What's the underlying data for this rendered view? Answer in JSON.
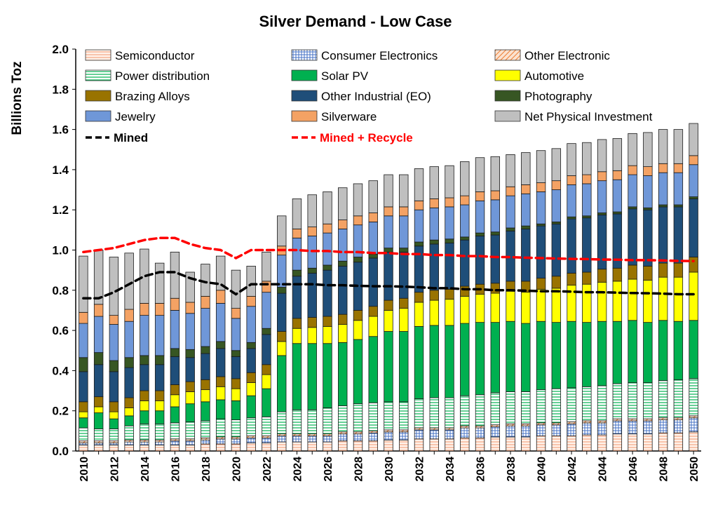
{
  "chart_data": {
    "type": "bar",
    "stacked": true,
    "title": "Silver Demand - Low Case",
    "ylabel": "Billions Toz",
    "xlabel": "",
    "ylim": [
      0,
      2.0
    ],
    "y_ticks": [
      "0.0",
      "0.2",
      "0.4",
      "0.6",
      "0.8",
      "1.0",
      "1.2",
      "1.4",
      "1.6",
      "1.8",
      "2.0"
    ],
    "x_tick_labels": [
      "2010",
      "2012",
      "2014",
      "2016",
      "2018",
      "2020",
      "2022",
      "2024",
      "2026",
      "2028",
      "2030",
      "2032",
      "2034",
      "2036",
      "2038",
      "2040",
      "2042",
      "2044",
      "2046",
      "2048",
      "2050"
    ],
    "categories": [
      2010,
      2011,
      2012,
      2013,
      2014,
      2015,
      2016,
      2017,
      2018,
      2019,
      2020,
      2021,
      2022,
      2023,
      2024,
      2025,
      2026,
      2027,
      2028,
      2029,
      2030,
      2031,
      2032,
      2033,
      2034,
      2035,
      2036,
      2037,
      2038,
      2039,
      2040,
      2041,
      2042,
      2043,
      2044,
      2045,
      2046,
      2047,
      2048,
      2049,
      2050
    ],
    "legend_position": "top",
    "grid": false,
    "series": [
      {
        "name": "Semiconductor",
        "color": "#f8cbad",
        "pattern": "hlines-peach",
        "values": [
          0.03,
          0.03,
          0.03,
          0.03,
          0.03,
          0.03,
          0.03,
          0.03,
          0.035,
          0.035,
          0.035,
          0.04,
          0.04,
          0.045,
          0.045,
          0.045,
          0.045,
          0.05,
          0.05,
          0.05,
          0.055,
          0.055,
          0.06,
          0.06,
          0.06,
          0.065,
          0.065,
          0.07,
          0.07,
          0.07,
          0.075,
          0.075,
          0.075,
          0.08,
          0.08,
          0.085,
          0.085,
          0.085,
          0.09,
          0.09,
          0.095
        ]
      },
      {
        "name": "Consumer Electronics",
        "color": "#4472c4",
        "pattern": "grid-blue",
        "values": [
          0.01,
          0.01,
          0.01,
          0.015,
          0.015,
          0.015,
          0.02,
          0.02,
          0.02,
          0.025,
          0.025,
          0.025,
          0.025,
          0.03,
          0.03,
          0.03,
          0.03,
          0.035,
          0.035,
          0.04,
          0.04,
          0.04,
          0.045,
          0.045,
          0.045,
          0.05,
          0.05,
          0.05,
          0.055,
          0.055,
          0.055,
          0.055,
          0.06,
          0.06,
          0.06,
          0.065,
          0.065,
          0.065,
          0.065,
          0.065,
          0.07
        ]
      },
      {
        "name": "Other Electronic",
        "color": "#ed7d31",
        "pattern": "diag-orange",
        "values": [
          0.01,
          0.01,
          0.01,
          0.01,
          0.01,
          0.01,
          0.01,
          0.01,
          0.01,
          0.01,
          0.01,
          0.01,
          0.01,
          0.01,
          0.01,
          0.01,
          0.01,
          0.01,
          0.01,
          0.01,
          0.01,
          0.01,
          0.01,
          0.01,
          0.01,
          0.01,
          0.01,
          0.01,
          0.01,
          0.01,
          0.01,
          0.01,
          0.01,
          0.01,
          0.01,
          0.01,
          0.01,
          0.01,
          0.01,
          0.01,
          0.01
        ]
      },
      {
        "name": "Power distribution",
        "color": "#00b050",
        "pattern": "hlines-green",
        "values": [
          0.065,
          0.06,
          0.06,
          0.07,
          0.08,
          0.08,
          0.08,
          0.085,
          0.085,
          0.09,
          0.085,
          0.09,
          0.095,
          0.11,
          0.12,
          0.12,
          0.13,
          0.13,
          0.14,
          0.14,
          0.14,
          0.14,
          0.145,
          0.15,
          0.15,
          0.15,
          0.155,
          0.16,
          0.16,
          0.16,
          0.165,
          0.17,
          0.17,
          0.17,
          0.175,
          0.175,
          0.18,
          0.18,
          0.185,
          0.19,
          0.185
        ]
      },
      {
        "name": "Solar PV",
        "color": "#00b050",
        "pattern": "",
        "values": [
          0.05,
          0.08,
          0.05,
          0.05,
          0.065,
          0.065,
          0.08,
          0.09,
          0.095,
          0.095,
          0.095,
          0.11,
          0.14,
          0.28,
          0.33,
          0.33,
          0.32,
          0.315,
          0.32,
          0.33,
          0.35,
          0.35,
          0.36,
          0.36,
          0.36,
          0.36,
          0.36,
          0.35,
          0.35,
          0.34,
          0.34,
          0.33,
          0.33,
          0.32,
          0.32,
          0.31,
          0.31,
          0.3,
          0.3,
          0.29,
          0.29
        ]
      },
      {
        "name": "Automotive",
        "color": "#ffff00",
        "pattern": "",
        "values": [
          0.03,
          0.03,
          0.035,
          0.04,
          0.05,
          0.05,
          0.06,
          0.06,
          0.06,
          0.065,
          0.06,
          0.065,
          0.07,
          0.07,
          0.075,
          0.08,
          0.085,
          0.09,
          0.095,
          0.1,
          0.105,
          0.115,
          0.12,
          0.125,
          0.13,
          0.135,
          0.14,
          0.145,
          0.15,
          0.155,
          0.16,
          0.17,
          0.18,
          0.19,
          0.195,
          0.2,
          0.205,
          0.21,
          0.215,
          0.22,
          0.24
        ]
      },
      {
        "name": "Brazing Alloys",
        "color": "#997300",
        "pattern": "",
        "values": [
          0.05,
          0.05,
          0.05,
          0.05,
          0.05,
          0.05,
          0.05,
          0.05,
          0.05,
          0.05,
          0.05,
          0.05,
          0.05,
          0.05,
          0.05,
          0.05,
          0.05,
          0.05,
          0.05,
          0.05,
          0.05,
          0.05,
          0.05,
          0.05,
          0.05,
          0.05,
          0.05,
          0.05,
          0.05,
          0.055,
          0.055,
          0.06,
          0.06,
          0.06,
          0.065,
          0.065,
          0.07,
          0.07,
          0.07,
          0.07,
          0.075
        ]
      },
      {
        "name": "Other Industrial (EO)",
        "color": "#1f4e79",
        "pattern": "",
        "values": [
          0.15,
          0.16,
          0.15,
          0.15,
          0.13,
          0.13,
          0.14,
          0.12,
          0.13,
          0.14,
          0.11,
          0.12,
          0.15,
          0.19,
          0.21,
          0.22,
          0.23,
          0.24,
          0.24,
          0.24,
          0.24,
          0.23,
          0.23,
          0.23,
          0.23,
          0.23,
          0.24,
          0.24,
          0.25,
          0.26,
          0.26,
          0.26,
          0.27,
          0.27,
          0.27,
          0.27,
          0.28,
          0.28,
          0.28,
          0.28,
          0.29
        ]
      },
      {
        "name": "Photography",
        "color": "#375623",
        "pattern": "",
        "values": [
          0.07,
          0.06,
          0.055,
          0.05,
          0.045,
          0.045,
          0.04,
          0.04,
          0.035,
          0.035,
          0.03,
          0.03,
          0.03,
          0.03,
          0.03,
          0.025,
          0.025,
          0.025,
          0.025,
          0.02,
          0.02,
          0.02,
          0.02,
          0.02,
          0.02,
          0.015,
          0.015,
          0.015,
          0.015,
          0.015,
          0.01,
          0.01,
          0.01,
          0.01,
          0.01,
          0.01,
          0.01,
          0.01,
          0.01,
          0.01,
          0.01
        ]
      },
      {
        "name": "Jewelry",
        "color": "#6f97d8",
        "pattern": "",
        "values": [
          0.17,
          0.18,
          0.18,
          0.18,
          0.2,
          0.2,
          0.19,
          0.18,
          0.19,
          0.19,
          0.16,
          0.18,
          0.18,
          0.16,
          0.16,
          0.16,
          0.16,
          0.16,
          0.16,
          0.16,
          0.16,
          0.16,
          0.16,
          0.16,
          0.16,
          0.16,
          0.16,
          0.16,
          0.16,
          0.16,
          0.16,
          0.16,
          0.16,
          0.16,
          0.16,
          0.16,
          0.16,
          0.16,
          0.16,
          0.16,
          0.16
        ]
      },
      {
        "name": "Silverware",
        "color": "#f4a264",
        "pattern": "",
        "values": [
          0.055,
          0.06,
          0.045,
          0.06,
          0.06,
          0.06,
          0.06,
          0.055,
          0.06,
          0.065,
          0.05,
          0.05,
          0.055,
          0.045,
          0.045,
          0.045,
          0.045,
          0.045,
          0.045,
          0.045,
          0.045,
          0.045,
          0.045,
          0.045,
          0.045,
          0.045,
          0.045,
          0.045,
          0.045,
          0.045,
          0.045,
          0.045,
          0.045,
          0.045,
          0.045,
          0.045,
          0.045,
          0.045,
          0.045,
          0.045,
          0.045
        ]
      },
      {
        "name": "Net Physical Investment",
        "color": "#bfbfbf",
        "pattern": "",
        "values": [
          0.28,
          0.27,
          0.29,
          0.28,
          0.27,
          0.2,
          0.23,
          0.15,
          0.16,
          0.17,
          0.19,
          0.15,
          0.145,
          0.15,
          0.15,
          0.16,
          0.16,
          0.16,
          0.16,
          0.16,
          0.16,
          0.16,
          0.16,
          0.16,
          0.16,
          0.17,
          0.17,
          0.17,
          0.16,
          0.16,
          0.16,
          0.16,
          0.16,
          0.16,
          0.16,
          0.16,
          0.16,
          0.17,
          0.17,
          0.17,
          0.16
        ]
      }
    ],
    "lines": [
      {
        "name": "Mined",
        "color": "#000000",
        "style": "dashed",
        "values": [
          0.76,
          0.76,
          0.79,
          0.83,
          0.87,
          0.89,
          0.89,
          0.86,
          0.84,
          0.83,
          0.78,
          0.83,
          0.83,
          0.83,
          0.83,
          0.83,
          0.825,
          0.825,
          0.822,
          0.82,
          0.82,
          0.818,
          0.815,
          0.81,
          0.81,
          0.805,
          0.805,
          0.8,
          0.8,
          0.798,
          0.795,
          0.795,
          0.793,
          0.79,
          0.79,
          0.788,
          0.786,
          0.785,
          0.783,
          0.78,
          0.78
        ]
      },
      {
        "name": "Mined + Recycle",
        "color": "#ff0000",
        "style": "dashed",
        "values": [
          0.99,
          1.0,
          1.01,
          1.03,
          1.05,
          1.06,
          1.06,
          1.03,
          1.01,
          1.0,
          0.96,
          1.0,
          1.0,
          1.0,
          1.0,
          0.995,
          0.995,
          0.99,
          0.99,
          0.985,
          0.985,
          0.98,
          0.98,
          0.975,
          0.975,
          0.97,
          0.97,
          0.965,
          0.965,
          0.962,
          0.96,
          0.958,
          0.956,
          0.955,
          0.953,
          0.952,
          0.95,
          0.95,
          0.948,
          0.946,
          0.945
        ]
      }
    ]
  }
}
